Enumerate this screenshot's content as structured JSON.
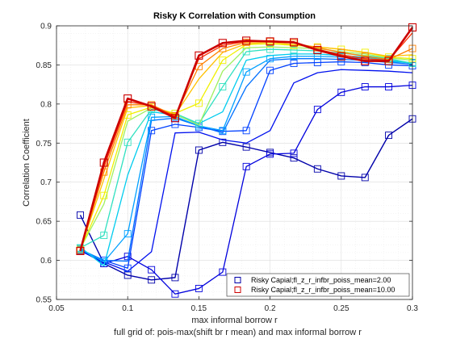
{
  "chart_data": {
    "type": "line",
    "title": "Risky K Correlation with Consumption",
    "xlabel": "max informal borrow r",
    "ylabel": "Correlation Coefficient",
    "caption": "full grid of: pois-max(shift br r mean) and max informal borrow r",
    "xlim": [
      0.05,
      0.3
    ],
    "ylim": [
      0.55,
      0.9
    ],
    "x_ticks": [
      "0.05",
      "0.1",
      "0.15",
      "0.2",
      "0.25",
      "0.3"
    ],
    "y_ticks": [
      "0.55",
      "0.6",
      "0.65",
      "0.7",
      "0.75",
      "0.8",
      "0.85",
      "0.9"
    ],
    "grid": true,
    "x": [
      0.0667,
      0.0833,
      0.1,
      0.1167,
      0.1333,
      0.15,
      0.1667,
      0.1833,
      0.2,
      0.2167,
      0.2333,
      0.25,
      0.2667,
      0.2833,
      0.3
    ],
    "legend_position": "bottom-right",
    "legend": [
      "Risky Capial;fl_z_r_infbr_poiss_mean=2.00",
      "Risky Capial;fl_z_r_infbr_poiss_mean=10.00"
    ],
    "series": [
      {
        "color": "#0000aa",
        "values": [
          0.658,
          0.596,
          0.581,
          0.575,
          0.578,
          0.741,
          0.751,
          0.745,
          0.738,
          0.731,
          0.717,
          0.708,
          0.706,
          0.76,
          0.781
        ]
      },
      {
        "color": "#0000dd",
        "values": [
          0.613,
          0.596,
          0.605,
          0.588,
          0.557,
          0.564,
          0.585,
          0.72,
          0.736,
          0.737,
          0.793,
          0.815,
          0.822,
          0.822,
          0.824
        ]
      },
      {
        "color": "#0010ee",
        "values": [
          0.612,
          0.598,
          0.586,
          0.611,
          0.763,
          0.764,
          0.754,
          0.75,
          0.766,
          0.827,
          0.84,
          0.844,
          0.843,
          0.842,
          0.84
        ]
      },
      {
        "color": "#0040ff",
        "values": [
          0.613,
          0.6,
          0.59,
          0.766,
          0.774,
          0.77,
          0.765,
          0.766,
          0.843,
          0.852,
          0.853,
          0.854,
          0.853,
          0.85,
          0.849
        ]
      },
      {
        "color": "#0070ff",
        "values": [
          0.614,
          0.6,
          0.599,
          0.779,
          0.782,
          0.772,
          0.763,
          0.822,
          0.856,
          0.858,
          0.858,
          0.857,
          0.856,
          0.853,
          0.851
        ]
      },
      {
        "color": "#00a0ff",
        "values": [
          0.615,
          0.598,
          0.634,
          0.783,
          0.784,
          0.772,
          0.766,
          0.841,
          0.858,
          0.861,
          0.861,
          0.86,
          0.858,
          0.854,
          0.853
        ]
      },
      {
        "color": "#00ccee",
        "values": [
          0.617,
          0.593,
          0.709,
          0.79,
          0.786,
          0.775,
          0.79,
          0.856,
          0.862,
          0.864,
          0.864,
          0.862,
          0.86,
          0.856,
          0.852
        ]
      },
      {
        "color": "#30e0c0",
        "values": [
          0.616,
          0.632,
          0.751,
          0.793,
          0.788,
          0.775,
          0.822,
          0.867,
          0.87,
          0.869,
          0.868,
          0.865,
          0.862,
          0.858,
          0.852
        ]
      },
      {
        "color": "#a0f060",
        "values": [
          0.615,
          0.672,
          0.778,
          0.795,
          0.787,
          0.773,
          0.842,
          0.872,
          0.873,
          0.872,
          0.871,
          0.867,
          0.864,
          0.859,
          0.856
        ]
      },
      {
        "color": "#f0f000",
        "values": [
          0.614,
          0.683,
          0.786,
          0.796,
          0.788,
          0.801,
          0.856,
          0.876,
          0.877,
          0.875,
          0.873,
          0.87,
          0.866,
          0.86,
          0.858
        ]
      },
      {
        "color": "#ffc000",
        "values": [
          0.613,
          0.704,
          0.795,
          0.798,
          0.786,
          0.832,
          0.866,
          0.877,
          0.879,
          0.876,
          0.873,
          0.87,
          0.866,
          0.861,
          0.863
        ]
      },
      {
        "color": "#ff8000",
        "values": [
          0.612,
          0.713,
          0.799,
          0.799,
          0.785,
          0.848,
          0.871,
          0.879,
          0.88,
          0.878,
          0.872,
          0.866,
          0.861,
          0.857,
          0.871
        ]
      },
      {
        "color": "#ff3000",
        "values": [
          0.612,
          0.719,
          0.803,
          0.798,
          0.784,
          0.858,
          0.875,
          0.88,
          0.881,
          0.879,
          0.87,
          0.863,
          0.858,
          0.856,
          0.891
        ]
      },
      {
        "color": "#cc0000",
        "values": [
          0.612,
          0.725,
          0.807,
          0.797,
          0.782,
          0.862,
          0.878,
          0.881,
          0.88,
          0.879,
          0.869,
          0.861,
          0.855,
          0.855,
          0.898
        ]
      }
    ]
  }
}
